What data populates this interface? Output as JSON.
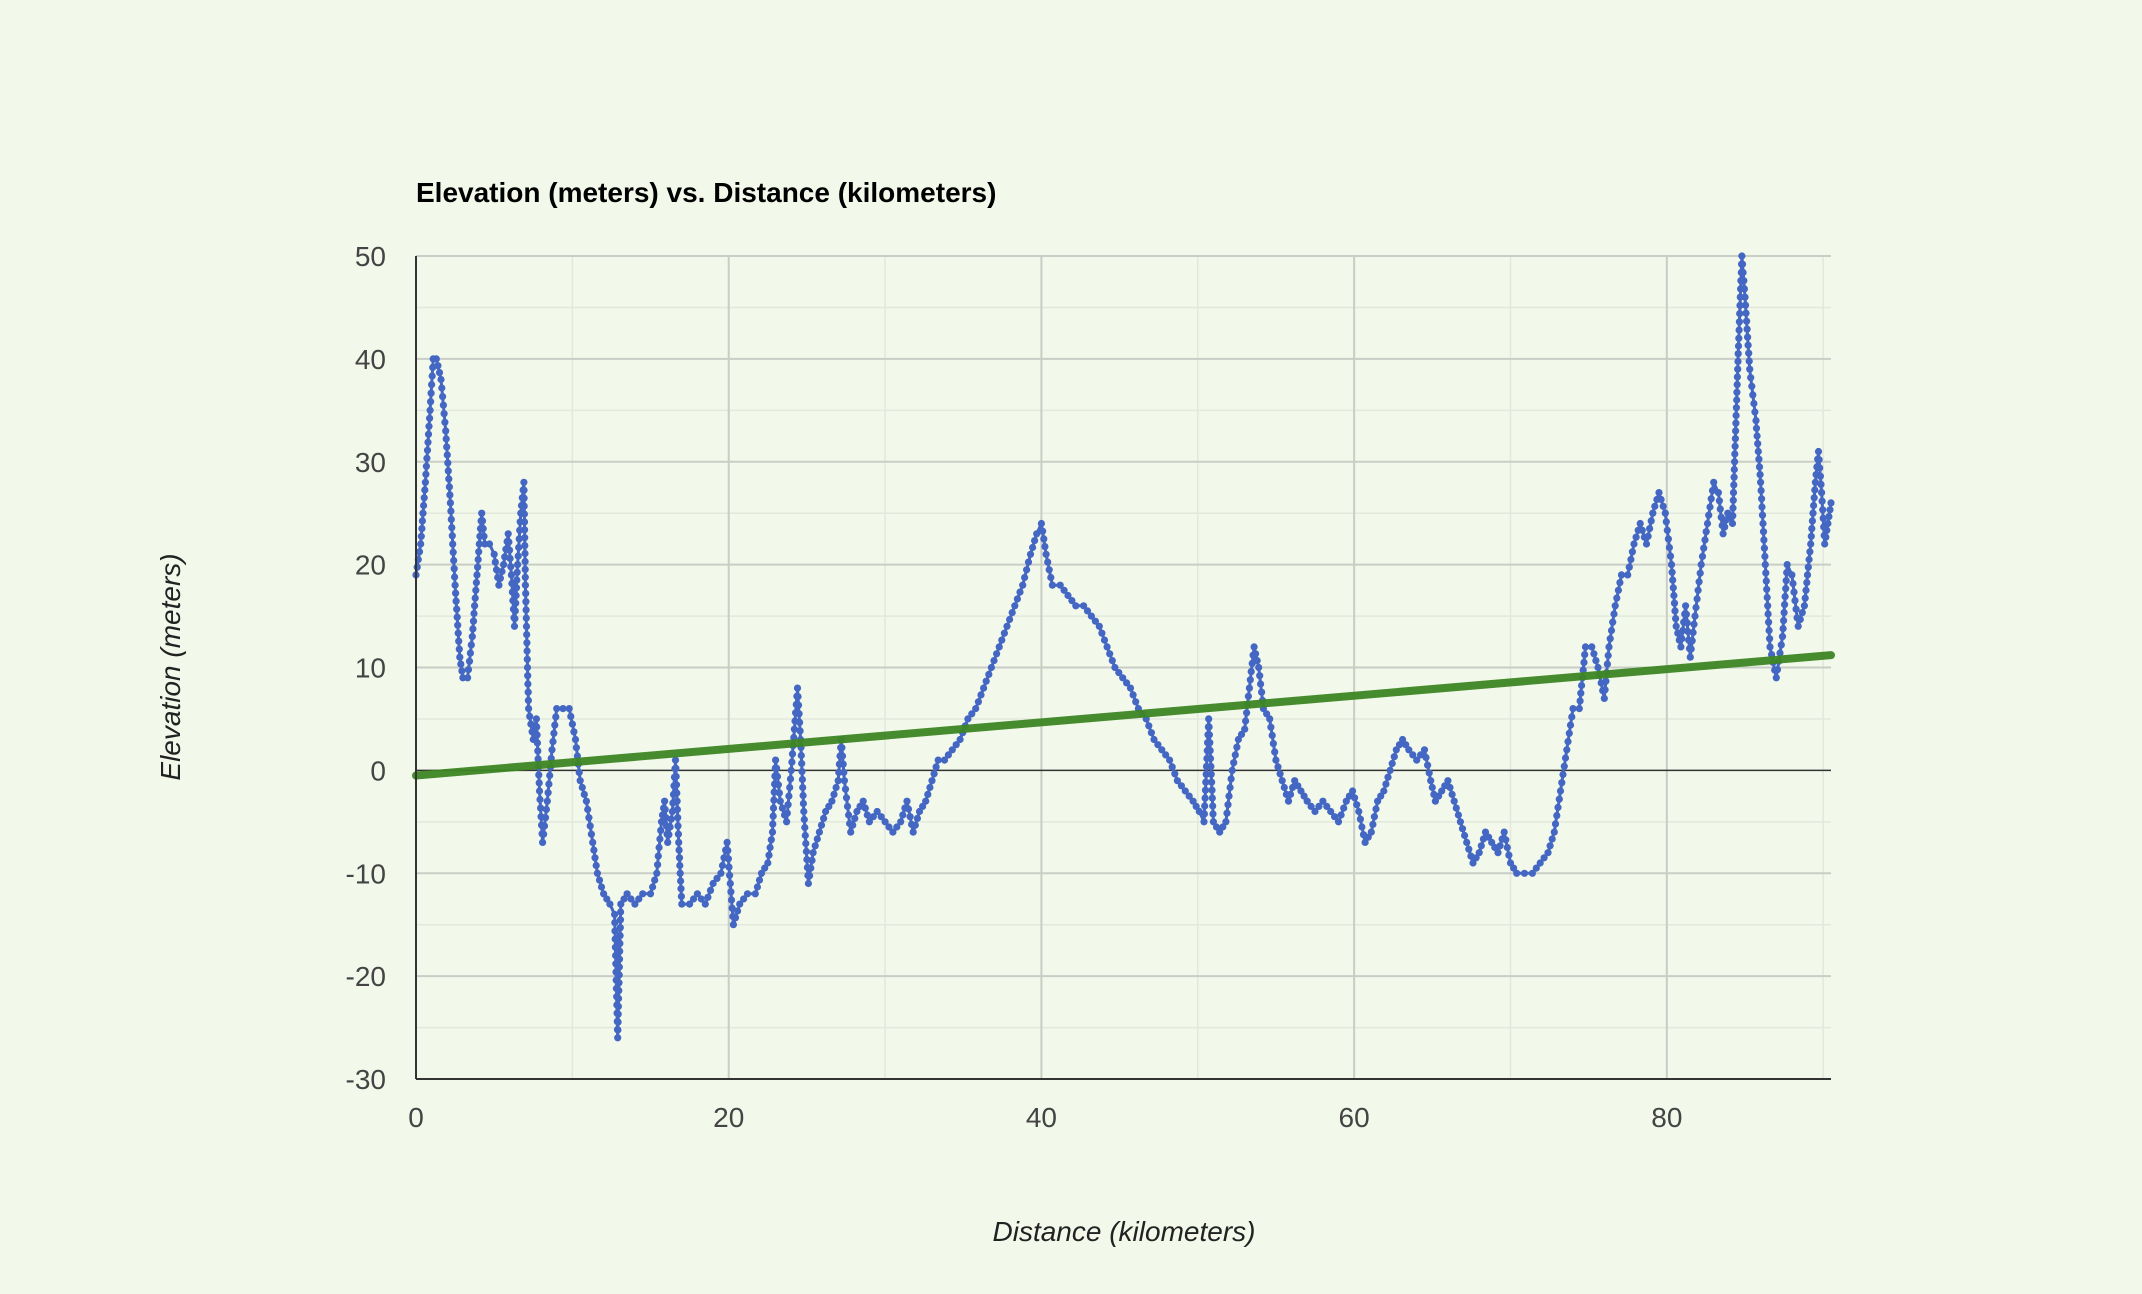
{
  "chart_data": {
    "type": "scatter",
    "title": "Elevation (meters) vs. Distance (kilometers)",
    "xlabel": "Distance (kilometers)",
    "ylabel": "Elevation (meters)",
    "xlim": [
      0,
      90.5
    ],
    "ylim": [
      -30,
      50
    ],
    "x_ticks": [
      "0",
      "20",
      "40",
      "60",
      "80"
    ],
    "y_ticks": [
      "50",
      "40",
      "30",
      "20",
      "10",
      "0",
      "-10",
      "-20",
      "-30"
    ],
    "x_tick_values": [
      0,
      20,
      40,
      60,
      80
    ],
    "y_tick_values": [
      50,
      40,
      30,
      20,
      10,
      0,
      -10,
      -20,
      -30
    ],
    "grid": true,
    "legend": "none",
    "series": [
      {
        "type": "scatter-line",
        "color": "#4467c4",
        "points": [
          [
            0,
            19
          ],
          [
            0.3,
            22
          ],
          [
            0.6,
            28
          ],
          [
            0.9,
            35
          ],
          [
            1.1,
            40
          ],
          [
            1.3,
            40
          ],
          [
            1.6,
            38
          ],
          [
            1.9,
            33
          ],
          [
            2.2,
            26
          ],
          [
            2.5,
            18
          ],
          [
            2.8,
            11
          ],
          [
            3.0,
            9
          ],
          [
            3.3,
            9
          ],
          [
            3.6,
            13
          ],
          [
            3.9,
            19
          ],
          [
            4.2,
            25
          ],
          [
            4.4,
            22
          ],
          [
            4.7,
            22
          ],
          [
            5.0,
            21
          ],
          [
            5.3,
            18
          ],
          [
            5.6,
            20
          ],
          [
            5.9,
            23
          ],
          [
            6.1,
            19
          ],
          [
            6.3,
            14
          ],
          [
            6.5,
            20
          ],
          [
            6.7,
            25
          ],
          [
            6.9,
            28
          ],
          [
            7.0,
            18
          ],
          [
            7.2,
            6
          ],
          [
            7.5,
            3
          ],
          [
            7.7,
            5
          ],
          [
            7.9,
            -2
          ],
          [
            8.1,
            -7
          ],
          [
            8.4,
            -3
          ],
          [
            8.7,
            2
          ],
          [
            9.0,
            6
          ],
          [
            9.4,
            6
          ],
          [
            9.8,
            6
          ],
          [
            10.2,
            3
          ],
          [
            10.5,
            -1
          ],
          [
            10.9,
            -3
          ],
          [
            11.3,
            -7
          ],
          [
            11.6,
            -10
          ],
          [
            12.0,
            -12
          ],
          [
            12.4,
            -13
          ],
          [
            12.7,
            -14
          ],
          [
            12.9,
            -26
          ],
          [
            13.1,
            -13
          ],
          [
            13.5,
            -12
          ],
          [
            14.0,
            -13
          ],
          [
            14.5,
            -12
          ],
          [
            15.0,
            -12
          ],
          [
            15.4,
            -10
          ],
          [
            15.7,
            -5
          ],
          [
            15.9,
            -3
          ],
          [
            16.1,
            -7
          ],
          [
            16.4,
            -4
          ],
          [
            16.6,
            1
          ],
          [
            16.8,
            -7
          ],
          [
            17.0,
            -13
          ],
          [
            17.5,
            -13
          ],
          [
            18.0,
            -12
          ],
          [
            18.5,
            -13
          ],
          [
            19.0,
            -11
          ],
          [
            19.5,
            -10
          ],
          [
            19.9,
            -7
          ],
          [
            20.1,
            -11
          ],
          [
            20.3,
            -15
          ],
          [
            20.7,
            -13
          ],
          [
            21.2,
            -12
          ],
          [
            21.7,
            -12
          ],
          [
            22.1,
            -10
          ],
          [
            22.5,
            -9
          ],
          [
            22.8,
            -6
          ],
          [
            23.0,
            1
          ],
          [
            23.3,
            -3
          ],
          [
            23.7,
            -5
          ],
          [
            24.0,
            0
          ],
          [
            24.2,
            4
          ],
          [
            24.4,
            8
          ],
          [
            24.6,
            3
          ],
          [
            24.8,
            -4
          ],
          [
            25.1,
            -11
          ],
          [
            25.4,
            -8
          ],
          [
            25.8,
            -6
          ],
          [
            26.2,
            -4
          ],
          [
            26.6,
            -3
          ],
          [
            27.0,
            -1
          ],
          [
            27.2,
            3
          ],
          [
            27.4,
            -1
          ],
          [
            27.8,
            -6
          ],
          [
            28.2,
            -4
          ],
          [
            28.6,
            -3
          ],
          [
            29.0,
            -5
          ],
          [
            29.5,
            -4
          ],
          [
            30.0,
            -5
          ],
          [
            30.5,
            -6
          ],
          [
            31.0,
            -5
          ],
          [
            31.4,
            -3
          ],
          [
            31.8,
            -6
          ],
          [
            32.2,
            -4
          ],
          [
            32.6,
            -3
          ],
          [
            33.0,
            -1
          ],
          [
            33.4,
            1
          ],
          [
            33.8,
            1
          ],
          [
            34.3,
            2
          ],
          [
            34.8,
            3
          ],
          [
            35.3,
            5
          ],
          [
            35.8,
            6
          ],
          [
            36.3,
            8
          ],
          [
            36.8,
            10
          ],
          [
            37.3,
            12
          ],
          [
            37.8,
            14
          ],
          [
            38.3,
            16
          ],
          [
            38.8,
            18
          ],
          [
            39.3,
            21
          ],
          [
            39.7,
            23
          ],
          [
            40.0,
            24
          ],
          [
            40.3,
            21
          ],
          [
            40.7,
            18
          ],
          [
            41.2,
            18
          ],
          [
            41.7,
            17
          ],
          [
            42.2,
            16
          ],
          [
            42.7,
            16
          ],
          [
            43.2,
            15
          ],
          [
            43.7,
            14
          ],
          [
            44.2,
            12
          ],
          [
            44.7,
            10
          ],
          [
            45.2,
            9
          ],
          [
            45.7,
            8
          ],
          [
            46.2,
            6
          ],
          [
            46.7,
            5
          ],
          [
            47.2,
            3
          ],
          [
            47.7,
            2
          ],
          [
            48.2,
            1
          ],
          [
            48.7,
            -1
          ],
          [
            49.2,
            -2
          ],
          [
            49.7,
            -3
          ],
          [
            50.1,
            -4
          ],
          [
            50.4,
            -5
          ],
          [
            50.7,
            5
          ],
          [
            51.0,
            -5
          ],
          [
            51.4,
            -6
          ],
          [
            51.8,
            -5
          ],
          [
            52.2,
            0
          ],
          [
            52.6,
            3
          ],
          [
            53.0,
            4
          ],
          [
            53.3,
            8
          ],
          [
            53.6,
            12
          ],
          [
            53.9,
            10
          ],
          [
            54.2,
            6
          ],
          [
            54.6,
            5
          ],
          [
            55.0,
            1
          ],
          [
            55.4,
            -1
          ],
          [
            55.8,
            -3
          ],
          [
            56.2,
            -1
          ],
          [
            56.6,
            -2
          ],
          [
            57.0,
            -3
          ],
          [
            57.5,
            -4
          ],
          [
            58.0,
            -3
          ],
          [
            58.5,
            -4
          ],
          [
            59.0,
            -5
          ],
          [
            59.5,
            -3
          ],
          [
            59.9,
            -2
          ],
          [
            60.3,
            -4
          ],
          [
            60.7,
            -7
          ],
          [
            61.1,
            -6
          ],
          [
            61.5,
            -3
          ],
          [
            61.9,
            -2
          ],
          [
            62.3,
            0
          ],
          [
            62.7,
            2
          ],
          [
            63.1,
            3
          ],
          [
            63.5,
            2
          ],
          [
            64.0,
            1
          ],
          [
            64.5,
            2
          ],
          [
            64.9,
            -1
          ],
          [
            65.2,
            -3
          ],
          [
            65.6,
            -2
          ],
          [
            66.0,
            -1
          ],
          [
            66.4,
            -3
          ],
          [
            66.8,
            -5
          ],
          [
            67.2,
            -7
          ],
          [
            67.6,
            -9
          ],
          [
            68.0,
            -8
          ],
          [
            68.4,
            -6
          ],
          [
            68.8,
            -7
          ],
          [
            69.2,
            -8
          ],
          [
            69.6,
            -6
          ],
          [
            70.0,
            -9
          ],
          [
            70.4,
            -10
          ],
          [
            70.9,
            -10
          ],
          [
            71.4,
            -10
          ],
          [
            71.9,
            -9
          ],
          [
            72.4,
            -8
          ],
          [
            72.8,
            -6
          ],
          [
            73.2,
            -2
          ],
          [
            73.6,
            2
          ],
          [
            74.0,
            6
          ],
          [
            74.4,
            6
          ],
          [
            74.8,
            12
          ],
          [
            75.2,
            12
          ],
          [
            75.6,
            10
          ],
          [
            76.0,
            7
          ],
          [
            76.3,
            12
          ],
          [
            76.7,
            16
          ],
          [
            77.1,
            19
          ],
          [
            77.5,
            19
          ],
          [
            77.9,
            22
          ],
          [
            78.3,
            24
          ],
          [
            78.7,
            22
          ],
          [
            79.1,
            25
          ],
          [
            79.5,
            27
          ],
          [
            79.9,
            25
          ],
          [
            80.3,
            20
          ],
          [
            80.6,
            14
          ],
          [
            80.9,
            12
          ],
          [
            81.2,
            16
          ],
          [
            81.5,
            11
          ],
          [
            81.8,
            15
          ],
          [
            82.2,
            20
          ],
          [
            82.6,
            24
          ],
          [
            83.0,
            28
          ],
          [
            83.3,
            27
          ],
          [
            83.6,
            23
          ],
          [
            83.9,
            25
          ],
          [
            84.2,
            24
          ],
          [
            84.4,
            33
          ],
          [
            84.6,
            42
          ],
          [
            84.8,
            50
          ],
          [
            85.0,
            46
          ],
          [
            85.3,
            39
          ],
          [
            85.7,
            34
          ],
          [
            86.0,
            28
          ],
          [
            86.3,
            20
          ],
          [
            86.6,
            12
          ],
          [
            87.0,
            9
          ],
          [
            87.4,
            13
          ],
          [
            87.7,
            20
          ],
          [
            88.0,
            19
          ],
          [
            88.4,
            14
          ],
          [
            88.8,
            16
          ],
          [
            89.2,
            22
          ],
          [
            89.5,
            28
          ],
          [
            89.7,
            31
          ],
          [
            89.9,
            27
          ],
          [
            90.1,
            22
          ],
          [
            90.3,
            24
          ],
          [
            90.5,
            26
          ]
        ]
      },
      {
        "type": "trendline",
        "color": "#3d8623",
        "points": [
          [
            0,
            -0.5
          ],
          [
            90.5,
            11.2
          ]
        ]
      }
    ]
  }
}
